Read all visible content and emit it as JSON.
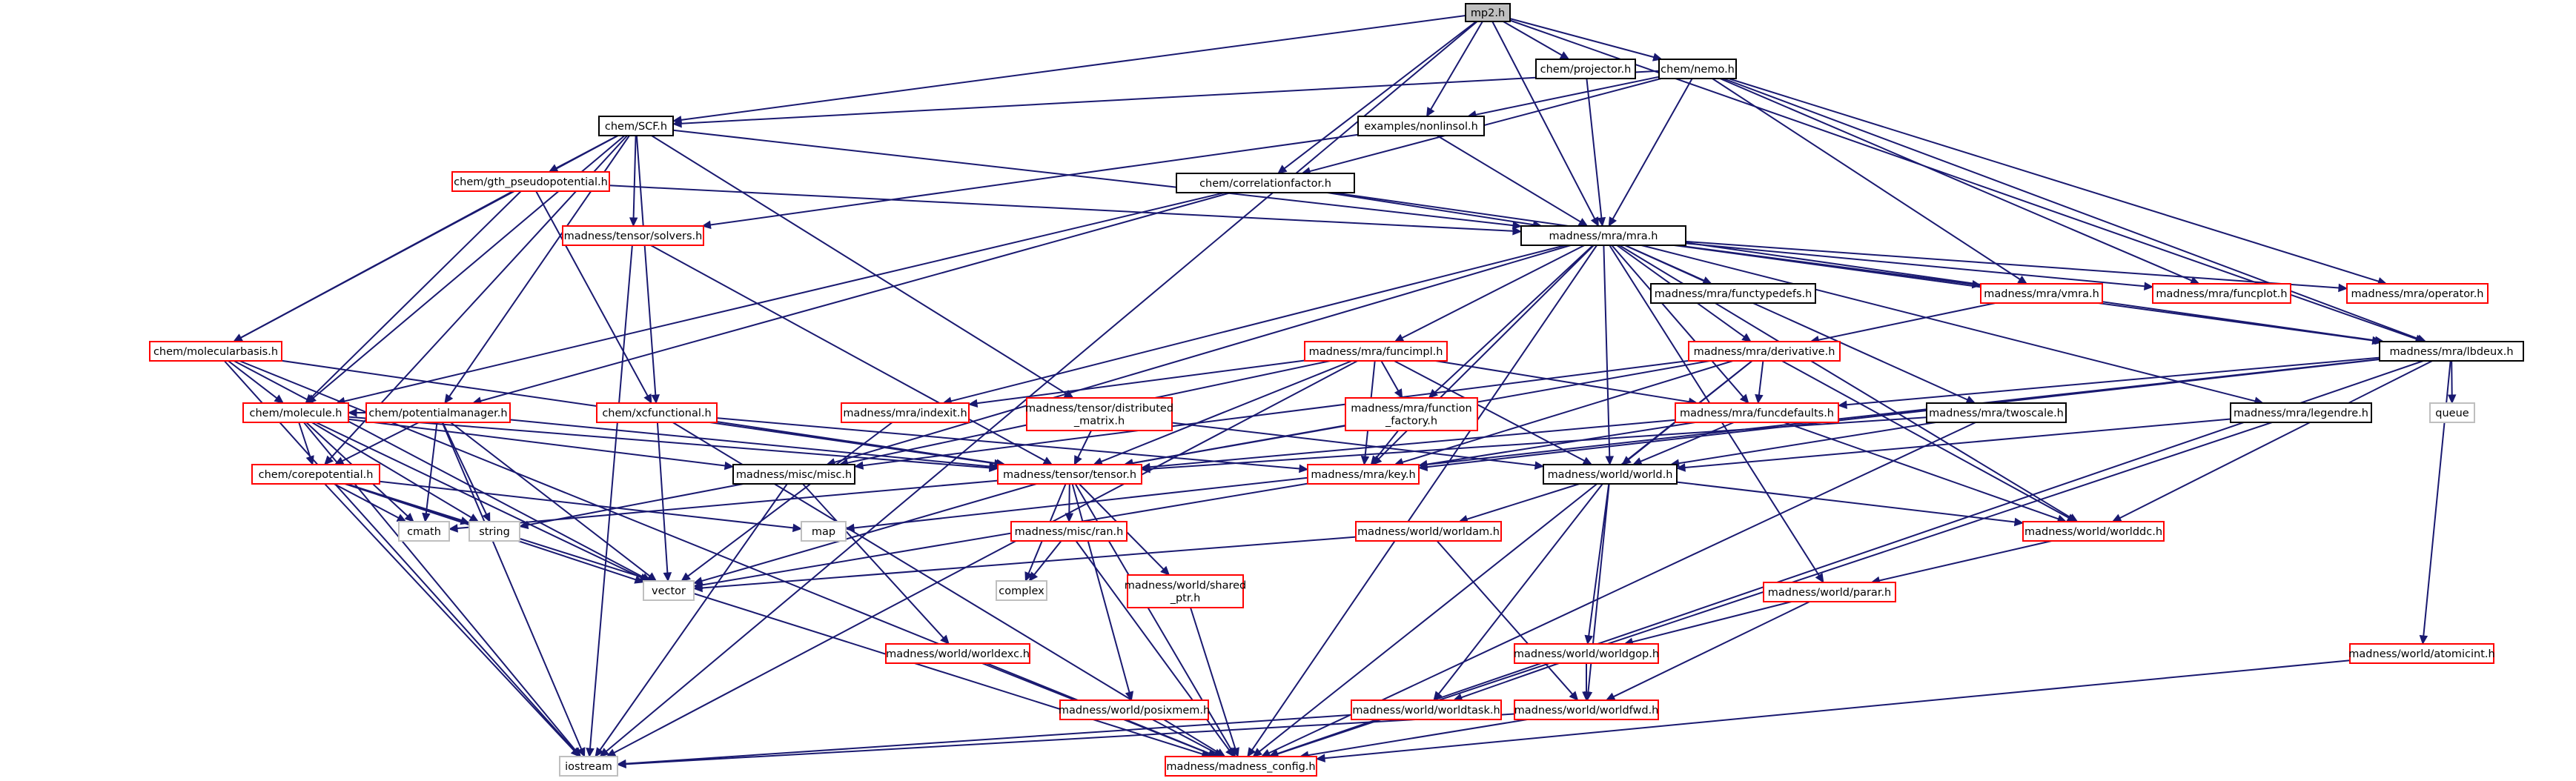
{
  "graph_title": "mp2.h",
  "colors": {
    "edge": "#191970",
    "current_fill": "#bfbfbf",
    "current_border": "#000000",
    "documented_border": "#000000",
    "undocumented_border": "#ff0000",
    "external_border": "#bfbfbf"
  },
  "nodes": [
    {
      "id": "mp2",
      "label": "mp2.h",
      "kind": "current"
    },
    {
      "id": "projector",
      "label": "chem/projector.h",
      "kind": "documented"
    },
    {
      "id": "nemo",
      "label": "chem/nemo.h",
      "kind": "documented"
    },
    {
      "id": "scf",
      "label": "chem/SCF.h",
      "kind": "documented"
    },
    {
      "id": "nonlinsol",
      "label": "examples/nonlinsol.h",
      "kind": "documented"
    },
    {
      "id": "gth",
      "label": "chem/gth_pseudopotential.h",
      "kind": "undocumented"
    },
    {
      "id": "corrfac",
      "label": "chem/correlationfactor.h",
      "kind": "documented"
    },
    {
      "id": "solvers",
      "label": "madness/tensor/solvers.h",
      "kind": "undocumented"
    },
    {
      "id": "mra",
      "label": "madness/mra/mra.h",
      "kind": "documented"
    },
    {
      "id": "functypedefs",
      "label": "madness/mra/functypedefs.h",
      "kind": "documented"
    },
    {
      "id": "vmra",
      "label": "madness/mra/vmra.h",
      "kind": "undocumented"
    },
    {
      "id": "funcplot",
      "label": "madness/mra/funcplot.h",
      "kind": "undocumented"
    },
    {
      "id": "operator",
      "label": "madness/mra/operator.h",
      "kind": "undocumented"
    },
    {
      "id": "molbasis",
      "label": "chem/molecularbasis.h",
      "kind": "undocumented"
    },
    {
      "id": "funcimpl",
      "label": "madness/mra/funcimpl.h",
      "kind": "undocumented"
    },
    {
      "id": "derivative",
      "label": "madness/mra/derivative.h",
      "kind": "undocumented"
    },
    {
      "id": "lbdeux",
      "label": "madness/mra/lbdeux.h",
      "kind": "documented"
    },
    {
      "id": "molecule",
      "label": "chem/molecule.h",
      "kind": "undocumented"
    },
    {
      "id": "potmgr",
      "label": "chem/potentialmanager.h",
      "kind": "undocumented"
    },
    {
      "id": "xcfunc",
      "label": "chem/xcfunctional.h",
      "kind": "undocumented"
    },
    {
      "id": "indexit",
      "label": "madness/mra/indexit.h",
      "kind": "undocumented"
    },
    {
      "id": "distmat",
      "label": "madness/tensor/distributed\n_matrix.h",
      "kind": "undocumented"
    },
    {
      "id": "funcfactory",
      "label": "madness/mra/function\n_factory.h",
      "kind": "undocumented"
    },
    {
      "id": "funcdefaults",
      "label": "madness/mra/funcdefaults.h",
      "kind": "undocumented"
    },
    {
      "id": "twoscale",
      "label": "madness/mra/twoscale.h",
      "kind": "documented"
    },
    {
      "id": "legendre",
      "label": "madness/mra/legendre.h",
      "kind": "documented"
    },
    {
      "id": "queue",
      "label": "queue",
      "kind": "external"
    },
    {
      "id": "corepot",
      "label": "chem/corepotential.h",
      "kind": "undocumented"
    },
    {
      "id": "misc",
      "label": "madness/misc/misc.h",
      "kind": "documented"
    },
    {
      "id": "tensor",
      "label": "madness/tensor/tensor.h",
      "kind": "undocumented"
    },
    {
      "id": "key",
      "label": "madness/mra/key.h",
      "kind": "undocumented"
    },
    {
      "id": "world",
      "label": "madness/world/world.h",
      "kind": "documented"
    },
    {
      "id": "cmath",
      "label": "cmath",
      "kind": "external"
    },
    {
      "id": "string",
      "label": "string",
      "kind": "external"
    },
    {
      "id": "map",
      "label": "map",
      "kind": "external"
    },
    {
      "id": "miscran",
      "label": "madness/misc/ran.h",
      "kind": "undocumented"
    },
    {
      "id": "worldam",
      "label": "madness/world/worldam.h",
      "kind": "undocumented"
    },
    {
      "id": "worlddc",
      "label": "madness/world/worlddc.h",
      "kind": "undocumented"
    },
    {
      "id": "vector",
      "label": "vector",
      "kind": "external"
    },
    {
      "id": "complex",
      "label": "complex",
      "kind": "external"
    },
    {
      "id": "sharedptr",
      "label": "madness/world/shared\n_ptr.h",
      "kind": "undocumented"
    },
    {
      "id": "parar",
      "label": "madness/world/parar.h",
      "kind": "undocumented"
    },
    {
      "id": "worldexc",
      "label": "madness/world/worldexc.h",
      "kind": "undocumented"
    },
    {
      "id": "worldgop",
      "label": "madness/world/worldgop.h",
      "kind": "undocumented"
    },
    {
      "id": "atomicint",
      "label": "madness/world/atomicint.h",
      "kind": "undocumented"
    },
    {
      "id": "posixmem",
      "label": "madness/world/posixmem.h",
      "kind": "undocumented"
    },
    {
      "id": "worldtask",
      "label": "madness/world/worldtask.h",
      "kind": "undocumented"
    },
    {
      "id": "worldfwd",
      "label": "madness/world/worldfwd.h",
      "kind": "undocumented"
    },
    {
      "id": "iostream",
      "label": "iostream",
      "kind": "external"
    },
    {
      "id": "config",
      "label": "madness/madness_config.h",
      "kind": "undocumented"
    }
  ],
  "edges": [
    [
      "mp2",
      "projector"
    ],
    [
      "mp2",
      "nemo"
    ],
    [
      "mp2",
      "scf"
    ],
    [
      "mp2",
      "nonlinsol"
    ],
    [
      "mp2",
      "corrfac"
    ],
    [
      "mp2",
      "mra"
    ],
    [
      "mp2",
      "lbdeux"
    ],
    [
      "mp2",
      "iostream"
    ],
    [
      "projector",
      "mra"
    ],
    [
      "nemo",
      "scf"
    ],
    [
      "nemo",
      "nonlinsol"
    ],
    [
      "nemo",
      "corrfac"
    ],
    [
      "nemo",
      "mra"
    ],
    [
      "nemo",
      "vmra"
    ],
    [
      "nemo",
      "funcplot"
    ],
    [
      "nemo",
      "operator"
    ],
    [
      "nemo",
      "lbdeux"
    ],
    [
      "scf",
      "gth"
    ],
    [
      "scf",
      "solvers"
    ],
    [
      "scf",
      "mra"
    ],
    [
      "scf",
      "molbasis"
    ],
    [
      "scf",
      "molecule"
    ],
    [
      "scf",
      "potmgr"
    ],
    [
      "scf",
      "xcfunc"
    ],
    [
      "scf",
      "distmat"
    ],
    [
      "scf",
      "corepot"
    ],
    [
      "nonlinsol",
      "mra"
    ],
    [
      "nonlinsol",
      "solvers"
    ],
    [
      "corrfac",
      "mra"
    ],
    [
      "corrfac",
      "molecule"
    ],
    [
      "corrfac",
      "potmgr"
    ],
    [
      "corrfac",
      "lbdeux"
    ],
    [
      "gth",
      "mra"
    ],
    [
      "gth",
      "molbasis"
    ],
    [
      "gth",
      "xcfunc"
    ],
    [
      "gth",
      "molecule"
    ],
    [
      "solvers",
      "tensor"
    ],
    [
      "solvers",
      "iostream"
    ],
    [
      "mra",
      "functypedefs"
    ],
    [
      "mra",
      "vmra"
    ],
    [
      "mra",
      "funcplot"
    ],
    [
      "mra",
      "operator"
    ],
    [
      "mra",
      "lbdeux"
    ],
    [
      "mra",
      "funcimpl"
    ],
    [
      "mra",
      "derivative"
    ],
    [
      "mra",
      "indexit"
    ],
    [
      "mra",
      "funcfactory"
    ],
    [
      "mra",
      "funcdefaults"
    ],
    [
      "mra",
      "twoscale"
    ],
    [
      "mra",
      "legendre"
    ],
    [
      "mra",
      "misc"
    ],
    [
      "mra",
      "key"
    ],
    [
      "mra",
      "world"
    ],
    [
      "mra",
      "worlddc"
    ],
    [
      "mra",
      "parar"
    ],
    [
      "mra",
      "config"
    ],
    [
      "vmra",
      "derivative"
    ],
    [
      "molbasis",
      "molecule"
    ],
    [
      "molbasis",
      "tensor"
    ],
    [
      "molbasis",
      "vector"
    ],
    [
      "molbasis",
      "iostream"
    ],
    [
      "molbasis",
      "config"
    ],
    [
      "funcimpl",
      "indexit"
    ],
    [
      "funcimpl",
      "funcfactory"
    ],
    [
      "funcimpl",
      "funcdefaults"
    ],
    [
      "funcimpl",
      "misc"
    ],
    [
      "funcimpl",
      "tensor"
    ],
    [
      "funcimpl",
      "key"
    ],
    [
      "funcimpl",
      "world"
    ],
    [
      "funcimpl",
      "iostream"
    ],
    [
      "derivative",
      "funcdefaults"
    ],
    [
      "derivative",
      "misc"
    ],
    [
      "derivative",
      "tensor"
    ],
    [
      "derivative",
      "key"
    ],
    [
      "derivative",
      "world"
    ],
    [
      "derivative",
      "worlddc"
    ],
    [
      "derivative",
      "config"
    ],
    [
      "lbdeux",
      "funcdefaults"
    ],
    [
      "lbdeux",
      "key"
    ],
    [
      "lbdeux",
      "queue"
    ],
    [
      "lbdeux",
      "map"
    ],
    [
      "lbdeux",
      "worlddc"
    ],
    [
      "lbdeux",
      "atomicint"
    ],
    [
      "lbdeux",
      "config"
    ],
    [
      "molecule",
      "corepot"
    ],
    [
      "molecule",
      "tensor"
    ],
    [
      "molecule",
      "misc"
    ],
    [
      "molecule",
      "cmath"
    ],
    [
      "molecule",
      "string"
    ],
    [
      "molecule",
      "vector"
    ],
    [
      "molecule",
      "iostream"
    ],
    [
      "potmgr",
      "corepot"
    ],
    [
      "potmgr",
      "tensor"
    ],
    [
      "potmgr",
      "cmath"
    ],
    [
      "potmgr",
      "string"
    ],
    [
      "potmgr",
      "vector"
    ],
    [
      "potmgr",
      "iostream"
    ],
    [
      "potmgr",
      "molecule"
    ],
    [
      "xcfunc",
      "tensor"
    ],
    [
      "xcfunc",
      "vector"
    ],
    [
      "xcfunc",
      "config"
    ],
    [
      "xcfunc",
      "key"
    ],
    [
      "indexit",
      "vector"
    ],
    [
      "distmat",
      "tensor"
    ],
    [
      "distmat",
      "world"
    ],
    [
      "funcfactory",
      "tensor"
    ],
    [
      "funcfactory",
      "key"
    ],
    [
      "funcdefaults",
      "tensor"
    ],
    [
      "funcdefaults",
      "key"
    ],
    [
      "funcdefaults",
      "world"
    ],
    [
      "funcdefaults",
      "worlddc"
    ],
    [
      "twoscale",
      "tensor"
    ],
    [
      "twoscale",
      "world"
    ],
    [
      "twoscale",
      "config"
    ],
    [
      "legendre",
      "world"
    ],
    [
      "legendre",
      "config"
    ],
    [
      "corepot",
      "cmath"
    ],
    [
      "corepot",
      "string"
    ],
    [
      "corepot",
      "map"
    ],
    [
      "corepot",
      "vector"
    ],
    [
      "corepot",
      "iostream"
    ],
    [
      "corepot",
      "config"
    ],
    [
      "misc",
      "string"
    ],
    [
      "misc",
      "iostream"
    ],
    [
      "misc",
      "worldexc"
    ],
    [
      "tensor",
      "complex"
    ],
    [
      "tensor",
      "miscran"
    ],
    [
      "tensor",
      "sharedptr"
    ],
    [
      "tensor",
      "posixmem"
    ],
    [
      "tensor",
      "vector"
    ],
    [
      "tensor",
      "cmath"
    ],
    [
      "tensor",
      "config"
    ],
    [
      "key",
      "vector"
    ],
    [
      "world",
      "worldam"
    ],
    [
      "world",
      "worlddc"
    ],
    [
      "world",
      "worldgop"
    ],
    [
      "world",
      "worldtask"
    ],
    [
      "world",
      "worldfwd"
    ],
    [
      "miscran",
      "complex"
    ],
    [
      "miscran",
      "config"
    ],
    [
      "worldam",
      "vector"
    ],
    [
      "worldam",
      "worldfwd"
    ],
    [
      "worlddc",
      "parar"
    ],
    [
      "sharedptr",
      "config"
    ],
    [
      "parar",
      "worldgop"
    ],
    [
      "parar",
      "worldfwd"
    ],
    [
      "worldexc",
      "config"
    ],
    [
      "worldgop",
      "worldtask"
    ],
    [
      "worldgop",
      "worldfwd"
    ],
    [
      "atomicint",
      "config"
    ],
    [
      "posixmem",
      "config"
    ],
    [
      "worldtask",
      "iostream"
    ],
    [
      "worldfwd",
      "iostream"
    ],
    [
      "worldfwd",
      "config"
    ]
  ]
}
